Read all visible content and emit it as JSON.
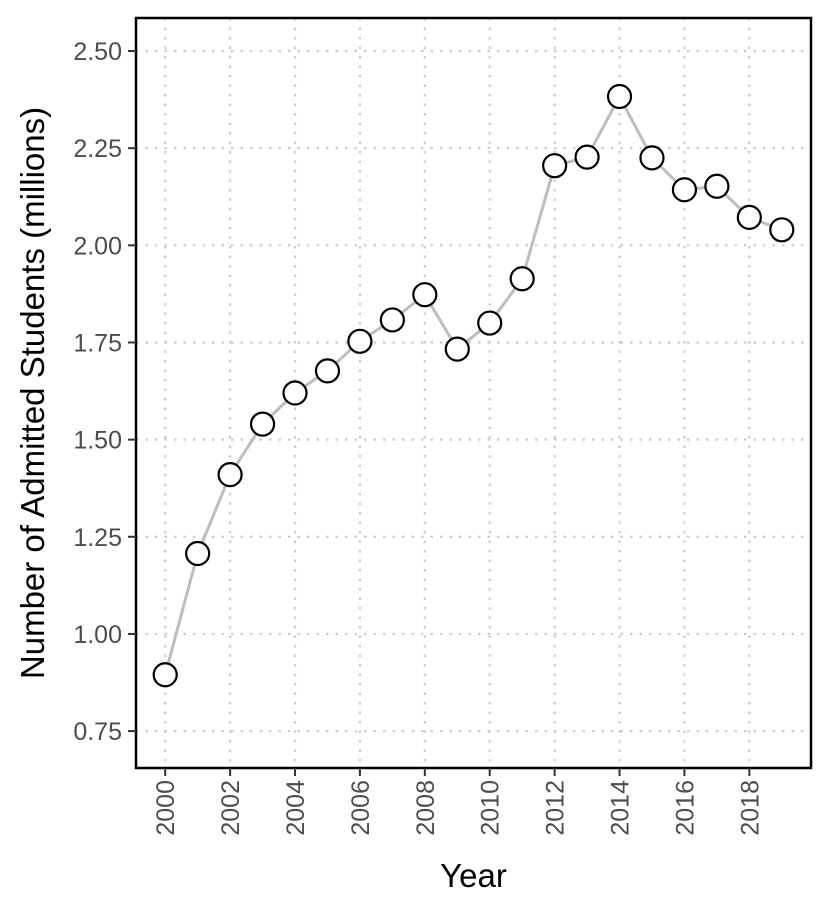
{
  "chart_data": {
    "type": "line",
    "xlabel": "Year",
    "ylabel": "Number of Admitted Students (millions)",
    "xlim": [
      1999.1,
      2019.9
    ],
    "ylim": [
      0.655,
      2.585
    ],
    "x_ticks": [
      2000,
      2002,
      2004,
      2006,
      2008,
      2010,
      2012,
      2014,
      2016,
      2018
    ],
    "y_ticks": [
      0.75,
      1.0,
      1.25,
      1.5,
      1.75,
      2.0,
      2.25,
      2.5
    ],
    "x_tick_labels": [
      "2000",
      "2002",
      "2004",
      "2006",
      "2008",
      "2010",
      "2012",
      "2014",
      "2016",
      "2018"
    ],
    "y_tick_labels": [
      "0.75",
      "1.00",
      "1.25",
      "1.50",
      "1.75",
      "2.00",
      "2.25",
      "2.50"
    ],
    "grid": true,
    "legend": "none",
    "colors": {
      "line": "#bdbdbd",
      "point_stroke": "#000000",
      "point_fill": "#ffffff",
      "grid": "#cccccc"
    },
    "series": [
      {
        "x": [
          2000,
          2001,
          2002,
          2003,
          2004,
          2005,
          2006,
          2007,
          2008,
          2009,
          2010,
          2011,
          2012,
          2013,
          2014,
          2015,
          2016,
          2017,
          2018,
          2019
        ],
        "values": [
          0.895,
          1.207,
          1.41,
          1.54,
          1.62,
          1.677,
          1.753,
          1.808,
          1.873,
          1.733,
          1.8,
          1.914,
          2.205,
          2.227,
          2.383,
          2.225,
          2.143,
          2.152,
          2.072,
          2.04
        ]
      }
    ]
  }
}
